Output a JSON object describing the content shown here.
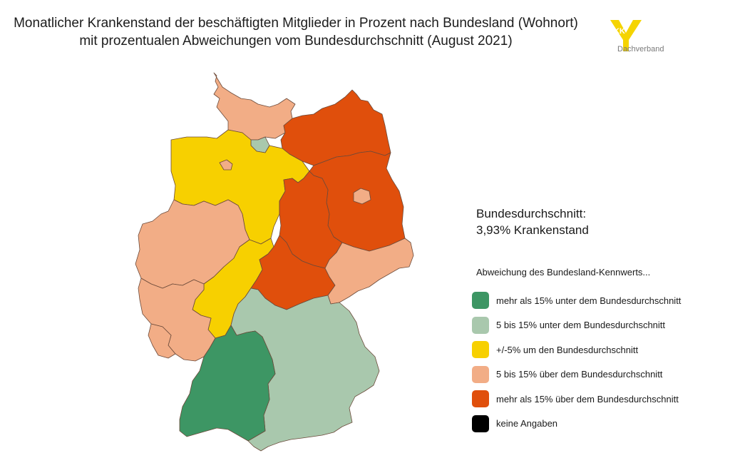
{
  "title": {
    "line1": "Monatlicher Krankenstand der beschäftigten Mitglieder in Prozent nach Bundesland (Wohnort)",
    "line2": "mit prozentualen Abweichungen vom Bundesdurchschnitt (August 2021)"
  },
  "logo": {
    "mark": "BKK",
    "text": "Dachverband",
    "color": "#f5d400"
  },
  "average": {
    "label": "Bundesdurchschnitt:",
    "value": "3,93% Krankenstand"
  },
  "legend": {
    "title": "Abweichung des Bundesland-Kennwerts...",
    "items": [
      {
        "label": "mehr als 15% unter dem Bundesdurchschnitt",
        "color": "#3d9664"
      },
      {
        "label": "5 bis 15% unter dem Bundesdurchschnitt",
        "color": "#a9c8ad"
      },
      {
        "label": "+/-5% um den Bundesdurchschnitt",
        "color": "#f7d000"
      },
      {
        "label": "5 bis 15% über dem Bundesdurchschnitt",
        "color": "#f2ad86"
      },
      {
        "label": "mehr als 15% über dem Bundesdurchschnitt",
        "color": "#e04f0c"
      },
      {
        "label": "keine Angaben",
        "color": "#000000"
      }
    ]
  },
  "regions": [
    {
      "id": "schleswig-holstein",
      "category": 3
    },
    {
      "id": "hamburg",
      "category": 1
    },
    {
      "id": "mecklenburg-vorpommern",
      "category": 4
    },
    {
      "id": "niedersachsen",
      "category": 2
    },
    {
      "id": "bremen",
      "category": 3
    },
    {
      "id": "brandenburg",
      "category": 4
    },
    {
      "id": "berlin",
      "category": 3
    },
    {
      "id": "sachsen-anhalt",
      "category": 4
    },
    {
      "id": "nordrhein-westfalen",
      "category": 3
    },
    {
      "id": "hessen",
      "category": 2
    },
    {
      "id": "thueringen",
      "category": 4
    },
    {
      "id": "sachsen",
      "category": 3
    },
    {
      "id": "rheinland-pfalz",
      "category": 3
    },
    {
      "id": "saarland",
      "category": 3
    },
    {
      "id": "bayern",
      "category": 1
    },
    {
      "id": "baden-wuerttemberg",
      "category": 0
    }
  ]
}
